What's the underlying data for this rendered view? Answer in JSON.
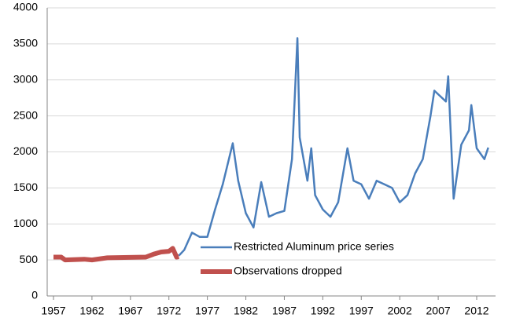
{
  "chart_data": {
    "type": "line",
    "series": [
      {
        "name": "Restricted Aluminum price series",
        "color": "#4a7ebb",
        "width": 2.5,
        "x": [
          1973.3,
          1974,
          1975,
          1976,
          1977,
          1978,
          1979,
          1980.3,
          1981,
          1982,
          1983,
          1984,
          1985,
          1986,
          1987,
          1988,
          1988.7,
          1989,
          1990,
          1990.5,
          1991,
          1992,
          1993,
          1994,
          1995.2,
          1996,
          1997,
          1998,
          1999,
          2000,
          2001,
          2002,
          2003,
          2004,
          2005,
          2006,
          2006.5,
          2007,
          2008,
          2008.3,
          2009,
          2010,
          2011,
          2011.3,
          2012,
          2013,
          2013.5
        ],
        "values": [
          560,
          640,
          880,
          820,
          820,
          1200,
          1550,
          2120,
          1600,
          1150,
          950,
          1580,
          1100,
          1150,
          1180,
          1900,
          3580,
          2200,
          1600,
          2050,
          1400,
          1200,
          1100,
          1300,
          2050,
          1600,
          1550,
          1350,
          1600,
          1550,
          1500,
          1300,
          1400,
          1700,
          1900,
          2500,
          2850,
          2800,
          2700,
          3050,
          1350,
          2100,
          2300,
          2650,
          2050,
          1900,
          2060
        ]
      },
      {
        "name": "Observations dropped",
        "color": "#c0504d",
        "width": 6,
        "x": [
          1957,
          1958,
          1958.5,
          1961,
          1962,
          1964,
          1969,
          1970,
          1971,
          1972,
          1972.5,
          1973,
          1973.3
        ],
        "values": [
          540,
          540,
          500,
          510,
          500,
          530,
          540,
          580,
          610,
          620,
          660,
          540,
          545
        ]
      }
    ],
    "xlim": [
      1956.5,
      2014
    ],
    "xticks": [
      1957,
      1962,
      1967,
      1972,
      1977,
      1982,
      1987,
      1992,
      1997,
      2002,
      2007,
      2012
    ],
    "ylim": [
      0,
      4000
    ],
    "yticks": [
      0,
      500,
      1000,
      1500,
      2000,
      2500,
      3000,
      3500,
      4000
    ],
    "grid": true
  }
}
